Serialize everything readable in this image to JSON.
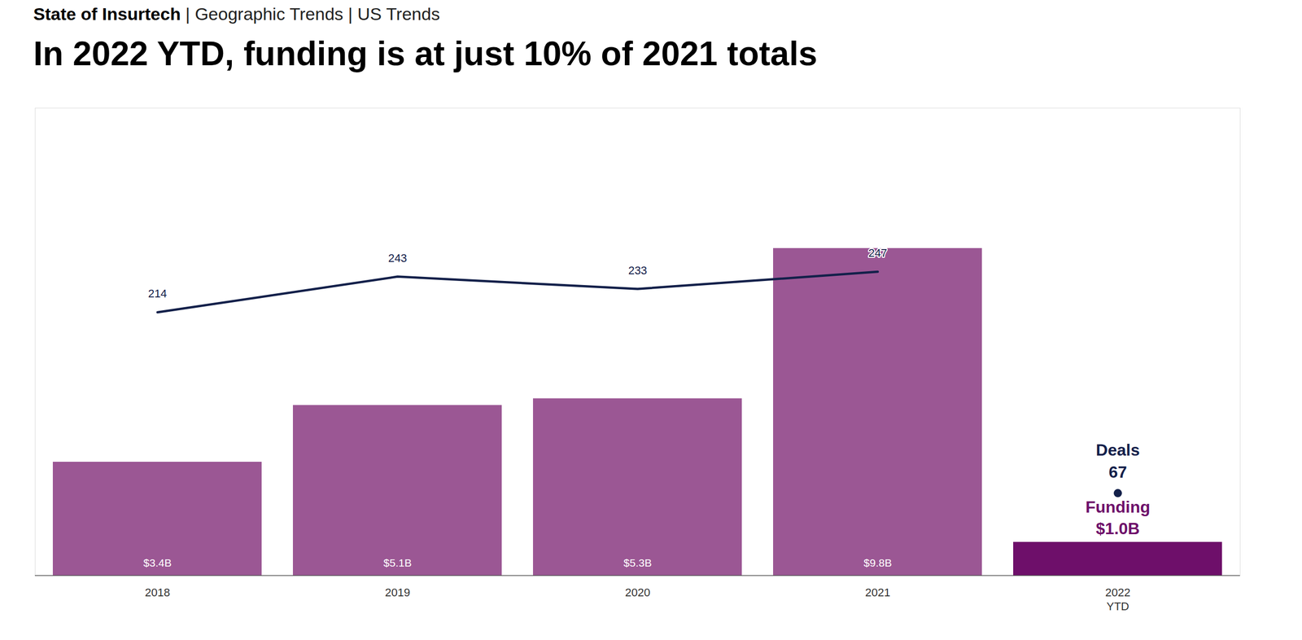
{
  "chart_data": {
    "type": "bar",
    "subtitle": "State of Insurtech | Geographic Trends | US Trends",
    "title": "In 2022 YTD, funding is at just 10% of 2021 totals",
    "categories": [
      "2018",
      "2019",
      "2020",
      "2021",
      "2022\nYTD"
    ],
    "series": [
      {
        "name": "Funding",
        "type": "bar",
        "axis": "y",
        "color": "#9b5794",
        "colors": [
          "#9b5794",
          "#9b5794",
          "#9b5794",
          "#9b5794",
          "#6e0f6a"
        ],
        "values": [
          3.4,
          5.1,
          5.3,
          9.8,
          1.0
        ],
        "value_labels": [
          "$3.4B",
          "$5.1B",
          "$5.3B",
          "$9.8B",
          "$1.0B"
        ]
      },
      {
        "name": "Deals",
        "type": "line",
        "axis": "y2",
        "color": "#13204a",
        "values": [
          214,
          243,
          233,
          247,
          null
        ]
      },
      {
        "name": "Deals",
        "type": "scatter",
        "axis": "y2",
        "color": "#13204a",
        "values": [
          null,
          null,
          null,
          null,
          67
        ]
      }
    ],
    "annotations": [
      {
        "category": "2022\nYTD",
        "series": "Deals",
        "text": "Deals"
      },
      {
        "category": "2022\nYTD",
        "series": "Funding",
        "text": "Funding"
      }
    ],
    "ylim": [
      0,
      14
    ],
    "y2lim": [
      0,
      380
    ],
    "data_labels": true,
    "tick_labels": "x",
    "grid": false
  }
}
